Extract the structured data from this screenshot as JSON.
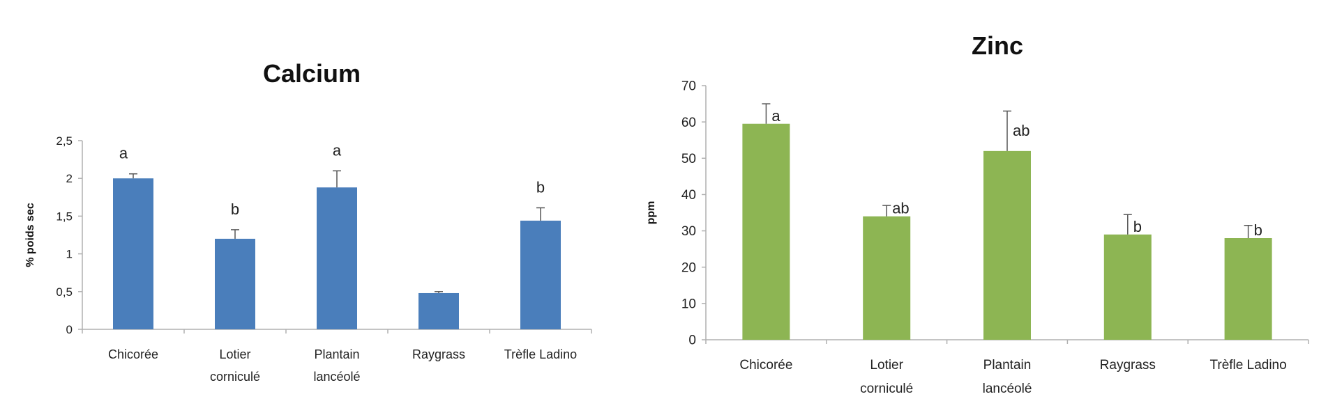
{
  "chart_data": [
    {
      "type": "bar",
      "title": "Calcium",
      "xlabel": "",
      "ylabel": "% poids sec",
      "ylim": [
        0,
        2.5
      ],
      "yticks": [
        "0",
        "0,5",
        "1",
        "1,5",
        "2",
        "2,5"
      ],
      "ytick_values": [
        0,
        0.5,
        1,
        1.5,
        2,
        2.5
      ],
      "categories": [
        [
          "Chicorée"
        ],
        [
          "Lotier",
          "corniculé"
        ],
        [
          "Plantain",
          "lancéolé"
        ],
        [
          "Raygrass"
        ],
        [
          "Trèfle Ladino"
        ]
      ],
      "values": [
        2.0,
        1.2,
        1.88,
        0.48,
        1.44
      ],
      "errors": [
        0.06,
        0.12,
        0.22,
        0.02,
        0.17
      ],
      "significance": [
        "a",
        "b",
        "a",
        "",
        "b"
      ],
      "color": "#4a7ebb",
      "grid": false
    },
    {
      "type": "bar",
      "title": "Zinc",
      "xlabel": "",
      "ylabel": "ppm",
      "ylim": [
        0,
        70
      ],
      "yticks": [
        "0",
        "10",
        "20",
        "30",
        "40",
        "50",
        "60",
        "70"
      ],
      "ytick_values": [
        0,
        10,
        20,
        30,
        40,
        50,
        60,
        70
      ],
      "categories": [
        [
          "Chicorée"
        ],
        [
          "Lotier",
          "corniculé"
        ],
        [
          "Plantain",
          "lancéolé"
        ],
        [
          "Raygrass"
        ],
        [
          "Trèfle Ladino"
        ]
      ],
      "values": [
        59.5,
        34,
        52,
        29,
        28
      ],
      "errors": [
        5.5,
        3,
        11,
        5.5,
        3.5
      ],
      "significance": [
        "a",
        "ab",
        "ab",
        "b",
        "b"
      ],
      "color": "#8db553",
      "grid": false
    }
  ]
}
